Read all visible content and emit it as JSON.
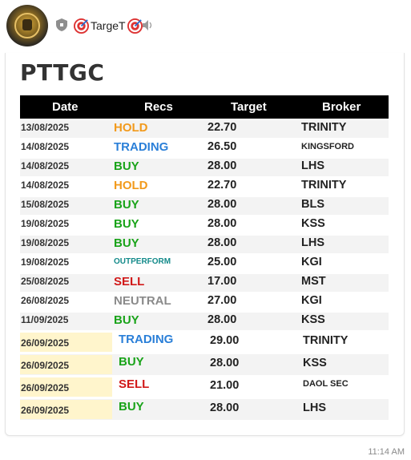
{
  "header": {
    "channel_name": "TargeT",
    "left_icon": "target-emoji",
    "right_icon": "target-emoji",
    "badge_icon": "shield-icon",
    "mute_icon": "speaker-icon"
  },
  "message": {
    "title": "PTTGC",
    "columns": [
      "Date",
      "Recs",
      "Target",
      "Broker"
    ],
    "rows": [
      {
        "date": "13/08/2025",
        "rec": "HOLD",
        "target": "22.70",
        "broker": "TRINITY"
      },
      {
        "date": "14/08/2025",
        "rec": "TRADING",
        "target": "26.50",
        "broker": "KINGSFORD"
      },
      {
        "date": "14/08/2025",
        "rec": "BUY",
        "target": "28.00",
        "broker": "LHS"
      },
      {
        "date": "14/08/2025",
        "rec": "HOLD",
        "target": "22.70",
        "broker": "TRINITY"
      },
      {
        "date": "15/08/2025",
        "rec": "BUY",
        "target": "28.00",
        "broker": "BLS"
      },
      {
        "date": "19/08/2025",
        "rec": "BUY",
        "target": "28.00",
        "broker": "KSS"
      },
      {
        "date": "19/08/2025",
        "rec": "BUY",
        "target": "28.00",
        "broker": "LHS"
      },
      {
        "date": "19/08/2025",
        "rec": "OUTPERFORM",
        "target": "25.00",
        "broker": "KGI"
      },
      {
        "date": "25/08/2025",
        "rec": "SELL",
        "target": "17.00",
        "broker": "MST"
      },
      {
        "date": "26/08/2025",
        "rec": "NEUTRAL",
        "target": "27.00",
        "broker": "KGI"
      },
      {
        "date": "11/09/2025",
        "rec": "BUY",
        "target": "28.00",
        "broker": "KSS"
      },
      {
        "date": "26/09/2025",
        "rec": "TRADING",
        "target": "29.00",
        "broker": "TRINITY"
      },
      {
        "date": "26/09/2025",
        "rec": "BUY",
        "target": "28.00",
        "broker": "KSS"
      },
      {
        "date": "26/09/2025",
        "rec": "SELL",
        "target": "21.00",
        "broker": "DAOL SEC"
      },
      {
        "date": "26/09/2025",
        "rec": "BUY",
        "target": "28.00",
        "broker": "LHS"
      }
    ],
    "time": "11:14 AM"
  },
  "colors": {
    "HOLD": "#f29a1c",
    "TRADING": "#2a7fd8",
    "BUY": "#19a319",
    "OUTPERFORM": "#138a8a",
    "SELL": "#d11a1a",
    "NEUTRAL": "#8a8a8a",
    "header_bg": "#000000",
    "highlight_date_bg": "#fff5cc"
  }
}
